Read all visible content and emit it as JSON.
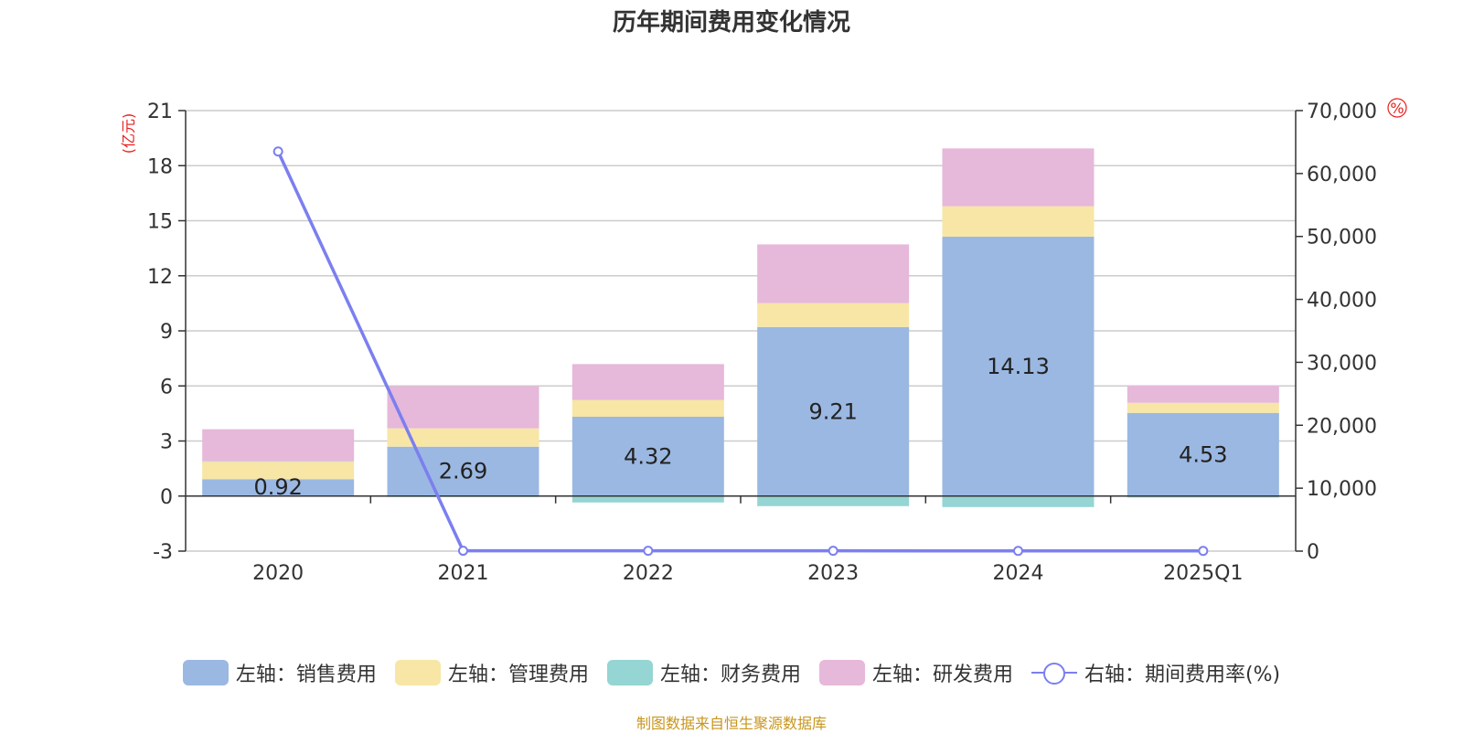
{
  "title": "历年期间费用变化情况",
  "source": "制图数据来自恒生聚源数据库",
  "colors": {
    "sales": "#9bb8e2",
    "admin": "#f7e6a6",
    "finance": "#95d5d3",
    "rd": "#e6b8da",
    "rate": "#7b7fef",
    "axis_unit": "#e8201e",
    "grid": "#cccccc"
  },
  "chart_data": {
    "type": "bar",
    "stacked": true,
    "title": "历年期间费用变化情况",
    "categories": [
      "2020",
      "2021",
      "2022",
      "2023",
      "2024",
      "2025Q1"
    ],
    "y_left": {
      "unit_label": "亿元",
      "ylim": [
        -3,
        21
      ],
      "ticks": [
        "21",
        "18",
        "15",
        "12",
        "9",
        "6",
        "3",
        "0",
        "-3"
      ]
    },
    "y_right": {
      "unit_label": "%",
      "ylim": [
        0,
        70000
      ],
      "ticks": [
        "70,000",
        "60,000",
        "50,000",
        "40,000",
        "30,000",
        "20,000",
        "10,000",
        "0"
      ]
    },
    "series": [
      {
        "name": "左轴：销售费用",
        "axis": "left",
        "values": [
          0.92,
          2.69,
          4.32,
          9.21,
          14.13,
          4.53
        ],
        "labels": [
          "0.92",
          "2.69",
          "4.32",
          "9.21",
          "14.13",
          "4.53"
        ]
      },
      {
        "name": "左轴：管理费用",
        "axis": "left",
        "values": [
          0.95,
          1.0,
          0.92,
          1.3,
          1.66,
          0.55
        ]
      },
      {
        "name": "左轴：财务费用",
        "axis": "left",
        "values": [
          0.02,
          -0.05,
          -0.35,
          -0.55,
          -0.6,
          -0.08
        ]
      },
      {
        "name": "左轴：研发费用",
        "axis": "left",
        "values": [
          1.75,
          2.3,
          1.95,
          3.2,
          3.15,
          0.95
        ]
      },
      {
        "name": "右轴：期间费用率(%)",
        "axis": "right",
        "type": "line",
        "values": [
          63500,
          60,
          50,
          50,
          40,
          40
        ]
      }
    ],
    "grid": true,
    "legend_position": "bottom"
  }
}
